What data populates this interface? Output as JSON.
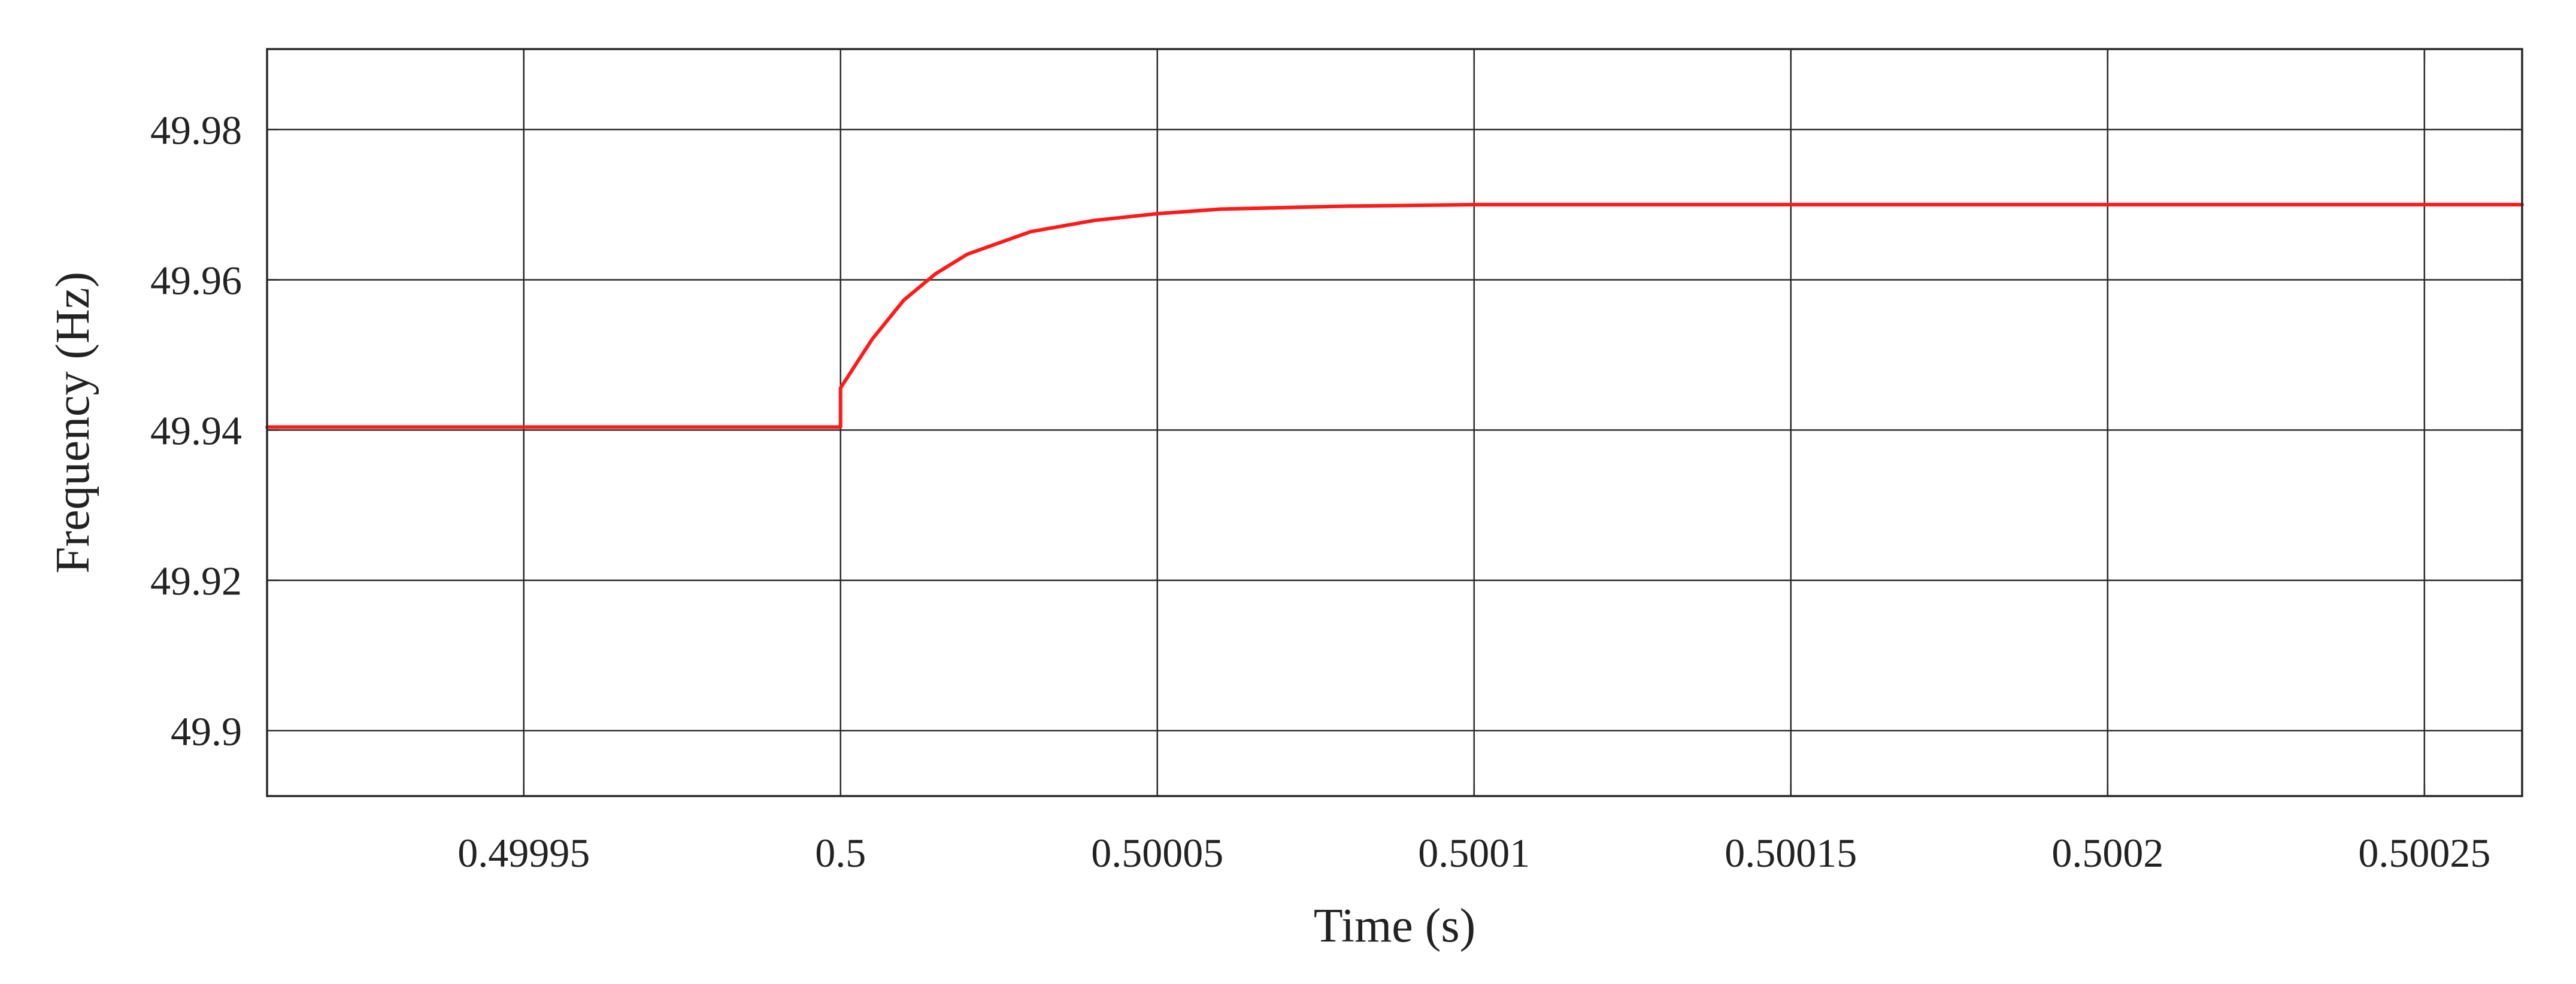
{
  "chart_data": {
    "type": "line",
    "title": "",
    "xlabel": "Time (s)",
    "ylabel": "Frequency (Hz)",
    "xlim": [
      0.49990948,
      0.50026542
    ],
    "ylim": [
      49.8913,
      49.9907
    ],
    "x_ticks": [
      0.49995,
      0.5,
      0.50005,
      0.5001,
      0.50015,
      0.5002,
      0.50025
    ],
    "x_tick_labels": [
      "0.49995",
      "0.5",
      "0.50005",
      "0.5001",
      "0.50015",
      "0.5002",
      "0.50025"
    ],
    "y_ticks": [
      49.9,
      49.92,
      49.94,
      49.96,
      49.98
    ],
    "y_tick_labels": [
      "49.9",
      "49.92",
      "49.94",
      "49.96",
      "49.98"
    ],
    "grid": true,
    "series": [
      {
        "color": "#ff1a1a",
        "x": [
          0.49990948,
          0.5,
          0.5,
          0.500005,
          0.50001,
          0.500015,
          0.50002,
          0.50003,
          0.50004,
          0.50005,
          0.50006,
          0.50008,
          0.5001,
          0.50015,
          0.5002,
          0.50026542
        ],
        "y": [
          49.9404,
          49.9404,
          49.9456,
          49.9521,
          49.9573,
          49.9608,
          49.9634,
          49.9664,
          49.9679,
          49.9688,
          49.9694,
          49.9698,
          49.97,
          49.97,
          49.97,
          49.97
        ]
      }
    ]
  }
}
